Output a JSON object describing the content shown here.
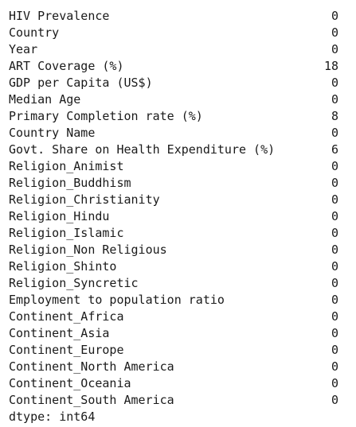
{
  "series_output": {
    "rows": [
      {
        "label": "HIV Prevalence",
        "value": "0"
      },
      {
        "label": "Country",
        "value": "0"
      },
      {
        "label": "Year",
        "value": "0"
      },
      {
        "label": "ART Coverage (%)",
        "value": "18"
      },
      {
        "label": "GDP per Capita (US$)",
        "value": "0"
      },
      {
        "label": "Median Age",
        "value": "0"
      },
      {
        "label": "Primary Completion rate (%)",
        "value": "8"
      },
      {
        "label": "Country Name",
        "value": "0"
      },
      {
        "label": "Govt. Share on Health Expenditure (%)",
        "value": "6"
      },
      {
        "label": "Religion_Animist",
        "value": "0"
      },
      {
        "label": "Religion_Buddhism",
        "value": "0"
      },
      {
        "label": "Religion_Christianity",
        "value": "0"
      },
      {
        "label": "Religion_Hindu",
        "value": "0"
      },
      {
        "label": "Religion_Islamic",
        "value": "0"
      },
      {
        "label": "Religion_Non Religious",
        "value": "0"
      },
      {
        "label": "Religion_Shinto",
        "value": "0"
      },
      {
        "label": "Religion_Syncretic",
        "value": "0"
      },
      {
        "label": "Employment to population ratio",
        "value": "0"
      },
      {
        "label": "Continent_Africa",
        "value": "0"
      },
      {
        "label": "Continent_Asia",
        "value": "0"
      },
      {
        "label": "Continent_Europe",
        "value": "0"
      },
      {
        "label": "Continent_North America",
        "value": "0"
      },
      {
        "label": "Continent_Oceania",
        "value": "0"
      },
      {
        "label": "Continent_South America",
        "value": "0"
      }
    ],
    "dtype_line": "dtype: int64"
  }
}
